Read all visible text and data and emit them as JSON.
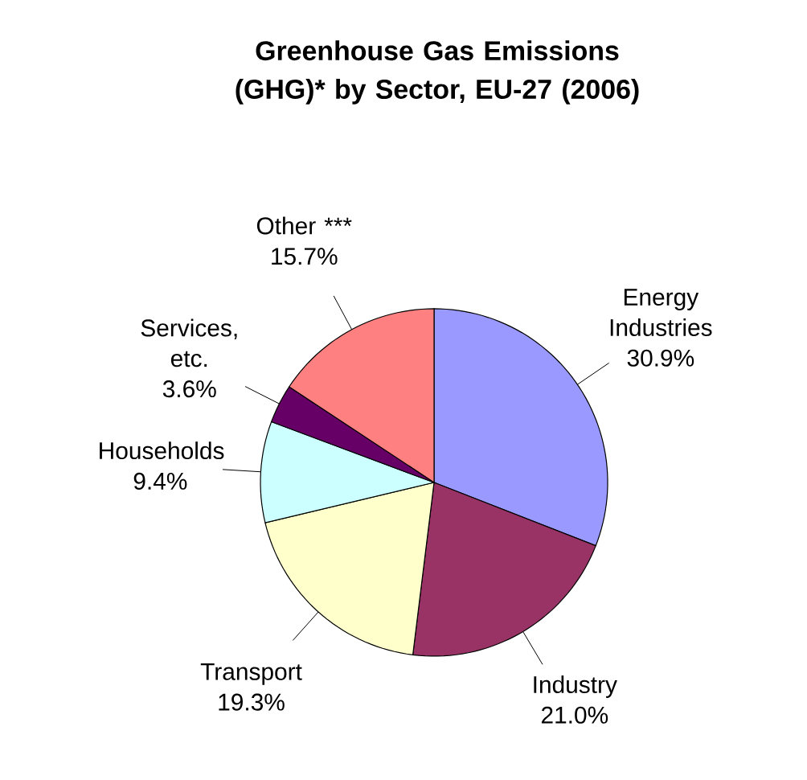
{
  "chart_data": {
    "type": "pie",
    "title": "Greenhouse Gas Emissions (GHG)* by Sector, EU-27 (2006)",
    "categories": [
      "Energy Industries",
      "Industry",
      "Transport",
      "Households",
      "Services, etc.",
      "Other ***"
    ],
    "values": [
      30.9,
      21.0,
      19.3,
      9.4,
      3.6,
      15.7
    ],
    "value_labels": [
      "30.9%",
      "21.0%",
      "19.3%",
      "9.4%",
      "3.6%",
      "15.7%"
    ],
    "colors": [
      "#9999ff",
      "#993366",
      "#ffffcc",
      "#ccffff",
      "#660066",
      "#ff8080"
    ]
  }
}
